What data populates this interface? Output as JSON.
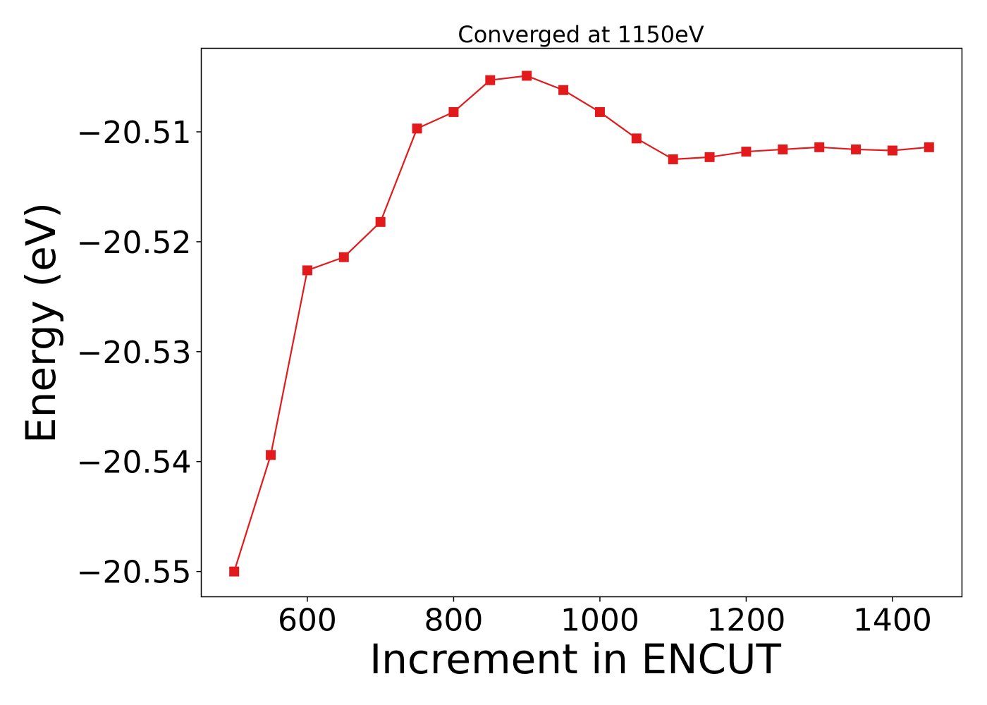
{
  "chart_data": {
    "type": "line",
    "title": "Converged at 1150eV",
    "xlabel": "Increment in ENCUT",
    "ylabel": "Energy (eV)",
    "xlim": [
      455,
      1495
    ],
    "ylim": [
      -20.5523,
      -20.5024
    ],
    "x_ticks": [
      600,
      800,
      1000,
      1200,
      1400
    ],
    "y_ticks": [
      -20.51,
      -20.52,
      -20.53,
      -20.54,
      -20.55
    ],
    "x_tick_labels": [
      "600",
      "800",
      "1000",
      "1200",
      "1400"
    ],
    "y_tick_labels": [
      "−20.51",
      "−20.52",
      "−20.53",
      "−20.54",
      "−20.55"
    ],
    "grid": false,
    "legend": "none",
    "series": [
      {
        "color": "#e31a1c",
        "marker": "square",
        "x": [
          500,
          550,
          600,
          650,
          700,
          750,
          800,
          850,
          900,
          950,
          1000,
          1050,
          1100,
          1150,
          1200,
          1250,
          1300,
          1350,
          1400,
          1450
        ],
        "y": [
          -20.55,
          -20.5394,
          -20.5226,
          -20.5214,
          -20.5182,
          -20.5097,
          -20.5082,
          -20.5053,
          -20.5049,
          -20.5062,
          -20.5082,
          -20.5106,
          -20.5125,
          -20.5123,
          -20.5118,
          -20.5116,
          -20.5114,
          -20.5116,
          -20.5117,
          -20.5114
        ]
      }
    ]
  }
}
